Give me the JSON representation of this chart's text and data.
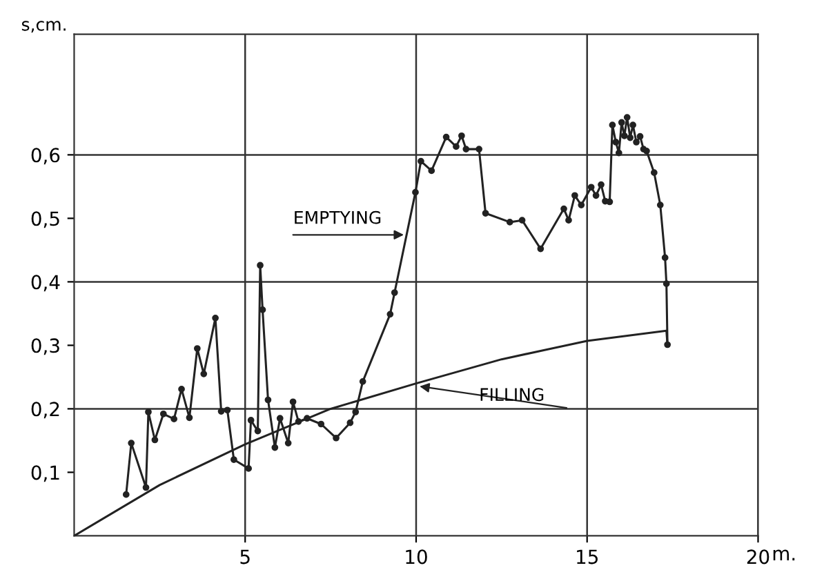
{
  "chart_data": {
    "type": "line",
    "ylabel": "s,cm.",
    "xlabel": "m.",
    "xlim": [
      0,
      20
    ],
    "ylim": [
      0,
      0.79
    ],
    "xticks": [
      5,
      10,
      15,
      20
    ],
    "yticks": [
      {
        "value": 0.1,
        "label": "0,1"
      },
      {
        "value": 0.2,
        "label": "0,2"
      },
      {
        "value": 0.3,
        "label": "0,3"
      },
      {
        "value": 0.4,
        "label": "0,4"
      },
      {
        "value": 0.5,
        "label": "0,5"
      },
      {
        "value": 0.6,
        "label": "0,6"
      }
    ],
    "grid": "x",
    "legend": false,
    "ref_lines": [
      {
        "axis": "y",
        "value": 0.2,
        "color": "#333333"
      },
      {
        "axis": "y",
        "value": 0.4,
        "color": "#333333"
      },
      {
        "axis": "y",
        "value": 0.6,
        "color": "#333333"
      }
    ],
    "series": [
      {
        "color": "#222222",
        "marker": "circle",
        "x": [
          1.52,
          1.67,
          2.1,
          2.17,
          2.36,
          2.61,
          2.92,
          3.14,
          3.37,
          3.6,
          3.79,
          4.13,
          4.3,
          4.48,
          4.67,
          5.1,
          5.17,
          5.37,
          5.44,
          5.51,
          5.67,
          5.87,
          6.02,
          6.26,
          6.4,
          6.56,
          6.81,
          7.22,
          7.66,
          8.07,
          8.23,
          8.44,
          9.24,
          9.37,
          9.98,
          10.14,
          10.45,
          10.88,
          11.17,
          11.33,
          11.46,
          11.84,
          12.03,
          12.74,
          13.1,
          13.64,
          14.32,
          14.46,
          14.64,
          14.83,
          15.12,
          15.26,
          15.41,
          15.53,
          15.66,
          15.74,
          15.84,
          15.93,
          16.01,
          16.09,
          16.17,
          16.26,
          16.34,
          16.44,
          16.55,
          16.65,
          16.74,
          16.96,
          17.14,
          17.28,
          17.32,
          17.35
        ],
        "values": [
          0.065,
          0.146,
          0.076,
          0.195,
          0.151,
          0.192,
          0.184,
          0.231,
          0.186,
          0.295,
          0.255,
          0.343,
          0.196,
          0.198,
          0.12,
          0.106,
          0.182,
          0.165,
          0.426,
          0.356,
          0.214,
          0.139,
          0.185,
          0.146,
          0.211,
          0.18,
          0.185,
          0.176,
          0.154,
          0.178,
          0.195,
          0.243,
          0.349,
          0.383,
          0.541,
          0.59,
          0.575,
          0.628,
          0.613,
          0.63,
          0.609,
          0.609,
          0.508,
          0.494,
          0.497,
          0.452,
          0.515,
          0.497,
          0.536,
          0.521,
          0.549,
          0.536,
          0.553,
          0.527,
          0.526,
          0.647,
          0.62,
          0.603,
          0.651,
          0.63,
          0.659,
          0.627,
          0.647,
          0.62,
          0.629,
          0.609,
          0.606,
          0.572,
          0.521,
          0.438,
          0.397,
          0.301
        ]
      },
      {
        "color": "#222222",
        "marker": "none",
        "x": [
          0,
          2.5,
          5,
          7.5,
          10,
          12.5,
          15,
          17.32,
          17.35
        ],
        "values": [
          0,
          0.08,
          0.144,
          0.2,
          0.24,
          0.278,
          0.307,
          0.323,
          0.301
        ]
      }
    ],
    "annotations": [
      "EMPTYING",
      "FILLING"
    ]
  }
}
